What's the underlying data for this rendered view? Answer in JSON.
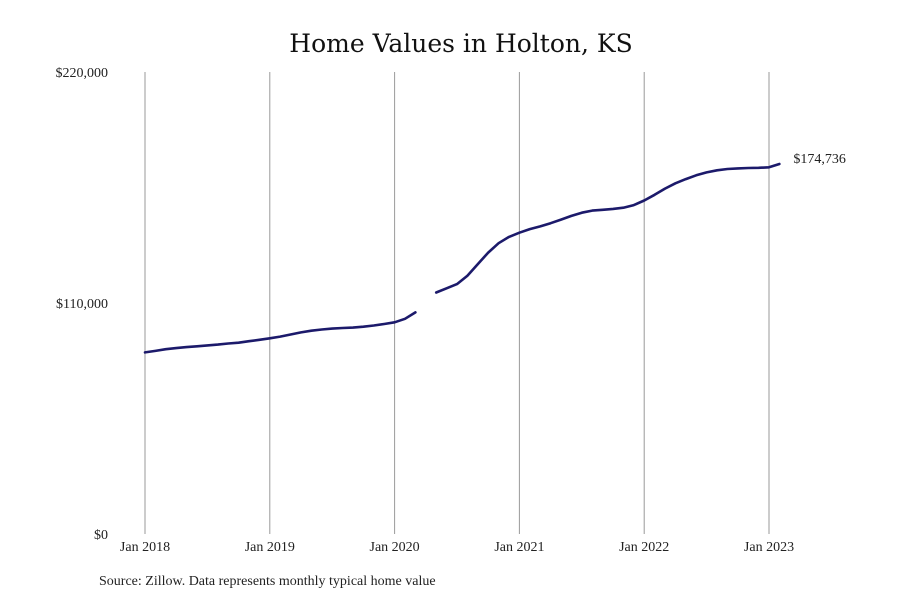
{
  "chart_data": {
    "type": "line",
    "title": "Home Values in Holton, KS",
    "source": "Source: Zillow. Data represents monthly typical home value",
    "ylim": [
      0,
      220000
    ],
    "y_ticks": [
      {
        "value": 0,
        "label": "$0"
      },
      {
        "value": 110000,
        "label": "$110,000"
      },
      {
        "value": 220000,
        "label": "$220,000"
      }
    ],
    "x_ticks": [
      {
        "value": "2018-01",
        "label": "Jan 2018"
      },
      {
        "value": "2019-01",
        "label": "Jan 2019"
      },
      {
        "value": "2020-01",
        "label": "Jan 2020"
      },
      {
        "value": "2021-01",
        "label": "Jan 2021"
      },
      {
        "value": "2022-01",
        "label": "Jan 2022"
      },
      {
        "value": "2023-01",
        "label": "Jan 2023"
      }
    ],
    "grid": "vertical",
    "end_label": "$174,736",
    "series": [
      {
        "color": "#1c1a6b",
        "segments": [
          {
            "x": [
              "2018-01",
              "2018-02",
              "2018-03",
              "2018-04",
              "2018-05",
              "2018-06",
              "2018-07",
              "2018-08",
              "2018-09",
              "2018-10",
              "2018-11",
              "2018-12",
              "2019-01",
              "2019-02",
              "2019-03",
              "2019-04",
              "2019-05",
              "2019-06",
              "2019-07",
              "2019-08",
              "2019-09",
              "2019-10",
              "2019-11",
              "2019-12",
              "2020-01",
              "2020-02",
              "2020-03"
            ],
            "y": [
              86500,
              87200,
              88000,
              88500,
              89000,
              89400,
              89800,
              90200,
              90700,
              91100,
              91800,
              92500,
              93200,
              94000,
              95000,
              96000,
              96800,
              97400,
              97800,
              98100,
              98300,
              98700,
              99300,
              100000,
              100800,
              102500,
              105500
            ]
          },
          {
            "x": [
              "2020-05",
              "2020-06",
              "2020-07",
              "2020-08",
              "2020-09",
              "2020-10",
              "2020-11",
              "2020-12",
              "2021-01",
              "2021-02",
              "2021-03",
              "2021-04",
              "2021-05",
              "2021-06",
              "2021-07",
              "2021-08",
              "2021-09",
              "2021-10",
              "2021-11",
              "2021-12",
              "2022-01",
              "2022-02",
              "2022-03",
              "2022-04",
              "2022-05",
              "2022-06",
              "2022-07",
              "2022-08",
              "2022-09",
              "2022-10",
              "2022-11",
              "2022-12",
              "2023-01",
              "2023-02"
            ],
            "y": [
              115000,
              117000,
              119000,
              123000,
              128500,
              134000,
              138500,
              141500,
              143500,
              145200,
              146500,
              148000,
              149700,
              151500,
              153000,
              154000,
              154400,
              154800,
              155400,
              156600,
              158800,
              161500,
              164500,
              167000,
              169000,
              170800,
              172200,
              173200,
              173800,
              174100,
              174300,
              174400,
              174600,
              176200
            ]
          }
        ]
      }
    ]
  }
}
